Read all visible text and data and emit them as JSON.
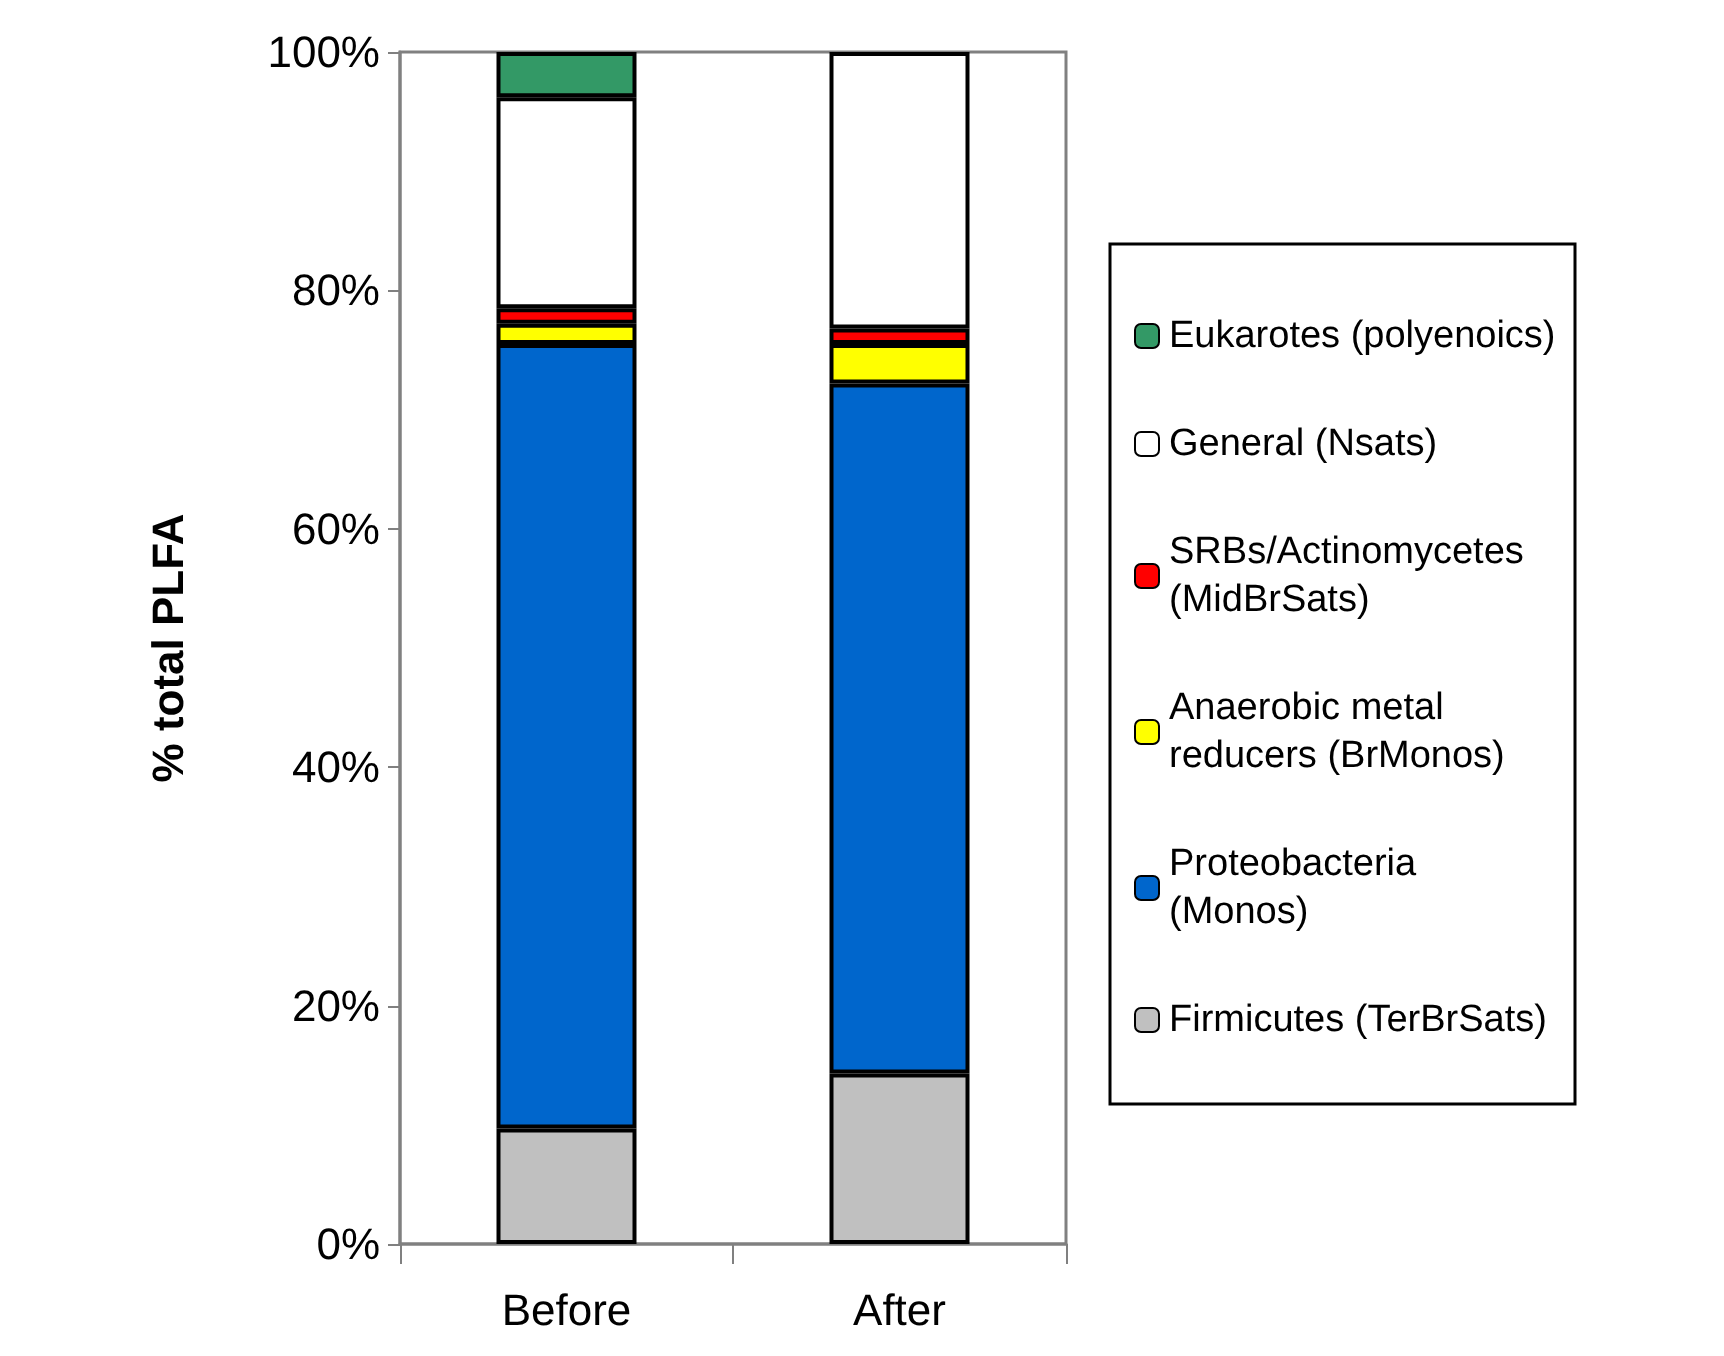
{
  "chart_data": {
    "type": "bar",
    "stacked": true,
    "categories": [
      "Before",
      "After"
    ],
    "ylabel": "% total PLFA",
    "ylim": [
      0,
      100
    ],
    "yticks": [
      {
        "value": 0,
        "label": "0%"
      },
      {
        "value": 20,
        "label": "20%"
      },
      {
        "value": 40,
        "label": "40%"
      },
      {
        "value": 60,
        "label": "60%"
      },
      {
        "value": 80,
        "label": "80%"
      },
      {
        "value": 100,
        "label": "100%"
      }
    ],
    "grid": false,
    "legend": "right",
    "series": [
      {
        "name": "Firmicutes (TerBrSats)",
        "color": "#c0c0c0",
        "values": [
          9.7,
          14.3
        ]
      },
      {
        "name": "Proteobacteria (Monos)",
        "color": "#0066cc",
        "values": [
          65.8,
          57.9
        ]
      },
      {
        "name": "Anaerobic metal reducers (BrMonos)",
        "color": "#ffff00",
        "values": [
          1.7,
          3.3
        ]
      },
      {
        "name": "SRBs/Actinomycetes (MidBrSats)",
        "color": "#ff0000",
        "values": [
          1.3,
          1.3
        ]
      },
      {
        "name": "General (Nsats)",
        "color": "#ffffff",
        "values": [
          17.7,
          23.2
        ]
      },
      {
        "name": "Eukarotes (polyenoics)",
        "color": "#339966",
        "values": [
          3.8,
          null
        ]
      }
    ]
  }
}
